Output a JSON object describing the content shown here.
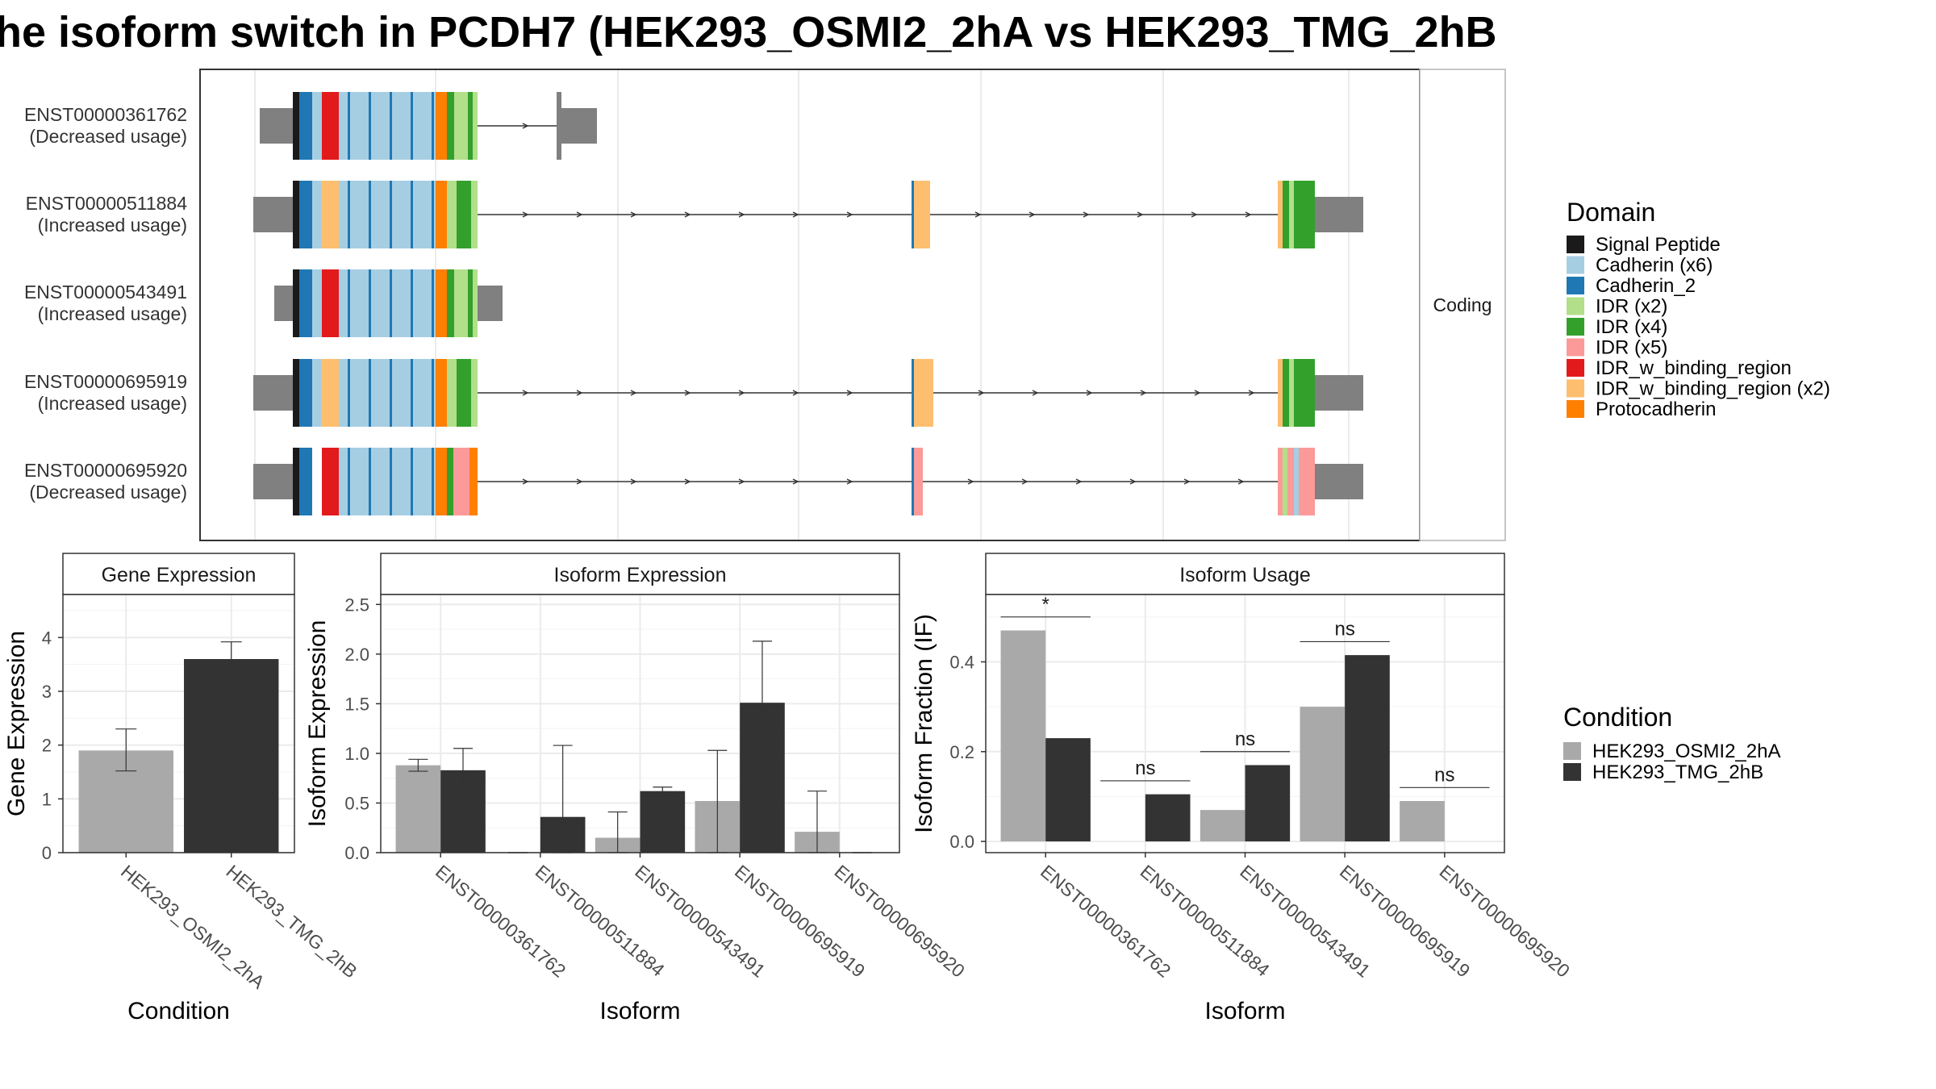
{
  "title": "he isoform switch in PCDH7 (HEK293_OSMI2_2hA vs HEK293_TMG_2hB",
  "colors": {
    "signal_peptide": "#1a1a1a",
    "cadherin_x6": "#a6cee3",
    "cadherin_2": "#1f78b4",
    "idr_x2": "#b2df8a",
    "idr_x4": "#33a02c",
    "idr_x5": "#fb9a99",
    "idr_w_binding_region": "#e31a1c",
    "idr_w_binding_region_x2": "#fdbf6f",
    "protocadherin": "#ff7f00",
    "utr": "#808080",
    "cond_a": "#a9a9a9",
    "cond_b": "#333333"
  },
  "structure": {
    "facet_label": "Coding",
    "transcripts": [
      {
        "id": "ENST00000361762",
        "usage": "(Decreased usage)"
      },
      {
        "id": "ENST00000511884",
        "usage": "(Increased usage)"
      },
      {
        "id": "ENST00000543491",
        "usage": "(Increased usage)"
      },
      {
        "id": "ENST00000695919",
        "usage": "(Increased usage)"
      },
      {
        "id": "ENST00000695920",
        "usage": "(Decreased usage)"
      }
    ],
    "legend": {
      "title": "Domain",
      "items": [
        {
          "label": "Signal Peptide",
          "color_key": "signal_peptide"
        },
        {
          "label": "Cadherin (x6)",
          "color_key": "cadherin_x6"
        },
        {
          "label": "Cadherin_2",
          "color_key": "cadherin_2"
        },
        {
          "label": "IDR (x2)",
          "color_key": "idr_x2"
        },
        {
          "label": "IDR (x4)",
          "color_key": "idr_x4"
        },
        {
          "label": "IDR (x5)",
          "color_key": "idr_x5"
        },
        {
          "label": "IDR_w_binding_region",
          "color_key": "idr_w_binding_region"
        },
        {
          "label": "IDR_w_binding_region (x2)",
          "color_key": "idr_w_binding_region_x2"
        },
        {
          "label": "Protocadherin",
          "color_key": "protocadherin"
        }
      ]
    }
  },
  "condition_legend": {
    "title": "Condition",
    "items": [
      "HEK293_OSMI2_2hA",
      "HEK293_TMG_2hB"
    ]
  },
  "chart_data": [
    {
      "type": "bar",
      "title": "Gene Expression",
      "xlabel": "Condition",
      "ylabel": "Gene Expression",
      "categories": [
        "HEK293_OSMI2_2hA",
        "HEK293_TMG_2hB"
      ],
      "values": [
        1.9,
        3.6
      ],
      "error_low": [
        1.52,
        3.3
      ],
      "error_high": [
        2.3,
        3.92
      ],
      "ylim": [
        0,
        4.8
      ],
      "yticks": [
        "0",
        "1",
        "2",
        "3",
        "4"
      ],
      "grid": true
    },
    {
      "type": "bar",
      "title": "Isoform Expression",
      "xlabel": "Isoform",
      "ylabel": "Isoform Expression",
      "categories": [
        "ENST00000361762",
        "ENST00000511884",
        "ENST00000543491",
        "ENST00000695919",
        "ENST00000695920"
      ],
      "series": [
        {
          "name": "HEK293_OSMI2_2hA",
          "values": [
            0.88,
            0.0,
            0.15,
            0.52,
            0.21
          ],
          "error_low": [
            0.82,
            0.0,
            0.0,
            0.0,
            0.0
          ],
          "error_high": [
            0.94,
            0.0,
            0.41,
            1.03,
            0.62
          ]
        },
        {
          "name": "HEK293_TMG_2hB",
          "values": [
            0.83,
            0.36,
            0.62,
            1.51,
            0.0
          ],
          "error_low": [
            0.61,
            0.0,
            0.58,
            0.9,
            0.0
          ],
          "error_high": [
            1.05,
            1.08,
            0.66,
            2.13,
            0.0
          ]
        }
      ],
      "ylim": [
        0,
        2.6
      ],
      "yticks": [
        "0.0",
        "0.5",
        "1.0",
        "1.5",
        "2.0",
        "2.5"
      ],
      "grid": true
    },
    {
      "type": "bar",
      "title": "Isoform Usage",
      "xlabel": "Isoform",
      "ylabel": "Isoform Fraction (IF)",
      "categories": [
        "ENST00000361762",
        "ENST00000511884",
        "ENST00000543491",
        "ENST00000695919",
        "ENST00000695920"
      ],
      "series": [
        {
          "name": "HEK293_OSMI2_2hA",
          "values": [
            0.47,
            0.0,
            0.07,
            0.3,
            0.09
          ]
        },
        {
          "name": "HEK293_TMG_2hB",
          "values": [
            0.23,
            0.105,
            0.17,
            0.415,
            0.0
          ]
        }
      ],
      "significance": [
        "*",
        "ns",
        "ns",
        "ns",
        "ns"
      ],
      "ylim": [
        -0.025,
        0.55
      ],
      "yticks": [
        "0.0",
        "0.2",
        "0.4"
      ],
      "grid": true
    }
  ]
}
